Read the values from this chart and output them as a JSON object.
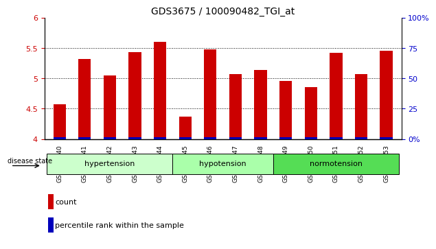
{
  "title": "GDS3675 / 100090482_TGI_at",
  "samples": [
    "GSM493540",
    "GSM493541",
    "GSM493542",
    "GSM493543",
    "GSM493544",
    "GSM493545",
    "GSM493546",
    "GSM493547",
    "GSM493548",
    "GSM493549",
    "GSM493550",
    "GSM493551",
    "GSM493552",
    "GSM493553"
  ],
  "count_values": [
    4.57,
    5.32,
    5.05,
    5.43,
    5.6,
    4.37,
    5.47,
    5.07,
    5.14,
    4.95,
    4.85,
    5.42,
    5.07,
    5.45
  ],
  "percentile_values": [
    0.03,
    0.03,
    0.03,
    0.03,
    0.03,
    0.03,
    0.03,
    0.03,
    0.03,
    0.03,
    0.03,
    0.03,
    0.03,
    0.03
  ],
  "ylim_left": [
    4.0,
    6.0
  ],
  "ylim_right": [
    0,
    100
  ],
  "yticks_left": [
    4.0,
    4.5,
    5.0,
    5.5,
    6.0
  ],
  "yticks_right": [
    0,
    25,
    50,
    75,
    100
  ],
  "bar_width": 0.5,
  "count_color": "#cc0000",
  "percentile_color": "#0000bb",
  "background_plot": "#ffffff",
  "tick_color_left": "#cc0000",
  "tick_color_right": "#0000cc",
  "disease_state_label": "disease state",
  "legend_count": "count",
  "legend_percentile": "percentile rank within the sample",
  "base_value": 4.0,
  "group_defs": [
    {
      "label": "hypertension",
      "start": 0,
      "end": 4,
      "color": "#ccffcc"
    },
    {
      "label": "hypotension",
      "start": 5,
      "end": 8,
      "color": "#aaffaa"
    },
    {
      "label": "normotension",
      "start": 9,
      "end": 13,
      "color": "#55dd55"
    }
  ]
}
